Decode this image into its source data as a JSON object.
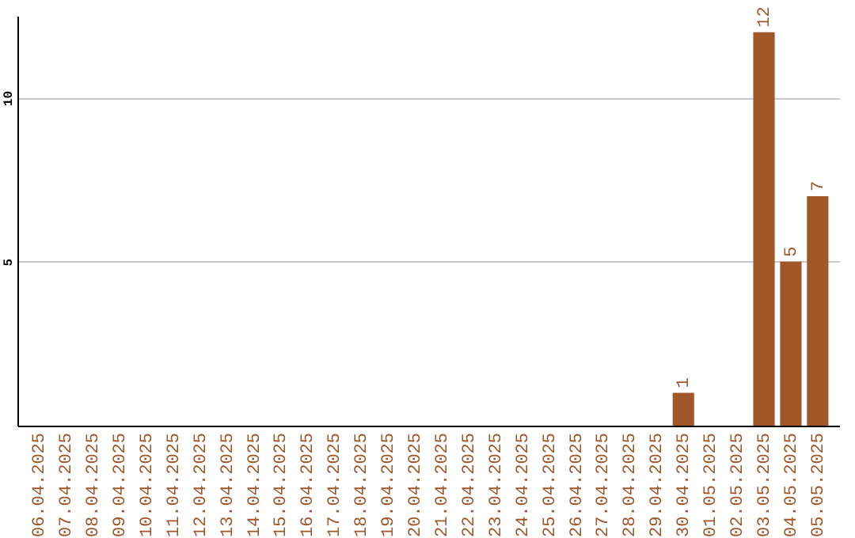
{
  "chart_data": {
    "type": "bar",
    "categories": [
      "06.04.2025",
      "07.04.2025",
      "08.04.2025",
      "09.04.2025",
      "10.04.2025",
      "11.04.2025",
      "12.04.2025",
      "13.04.2025",
      "14.04.2025",
      "15.04.2025",
      "16.04.2025",
      "17.04.2025",
      "18.04.2025",
      "19.04.2025",
      "20.04.2025",
      "21.04.2025",
      "22.04.2025",
      "23.04.2025",
      "24.04.2025",
      "25.04.2025",
      "26.04.2025",
      "27.04.2025",
      "28.04.2025",
      "29.04.2025",
      "30.04.2025",
      "01.05.2025",
      "02.05.2025",
      "03.05.2025",
      "04.05.2025",
      "05.05.2025"
    ],
    "values": [
      0,
      0,
      0,
      0,
      0,
      0,
      0,
      0,
      0,
      0,
      0,
      0,
      0,
      0,
      0,
      0,
      0,
      0,
      0,
      0,
      0,
      0,
      0,
      0,
      1,
      0,
      0,
      12,
      5,
      7
    ],
    "value_labels": [
      null,
      null,
      null,
      null,
      null,
      null,
      null,
      null,
      null,
      null,
      null,
      null,
      null,
      null,
      null,
      null,
      null,
      null,
      null,
      null,
      null,
      null,
      null,
      null,
      "1",
      null,
      null,
      "12",
      "5",
      "7"
    ],
    "color": "#a0572a",
    "ylim": [
      0,
      12.5
    ],
    "yticks": [
      5,
      10
    ],
    "grid": "y"
  }
}
